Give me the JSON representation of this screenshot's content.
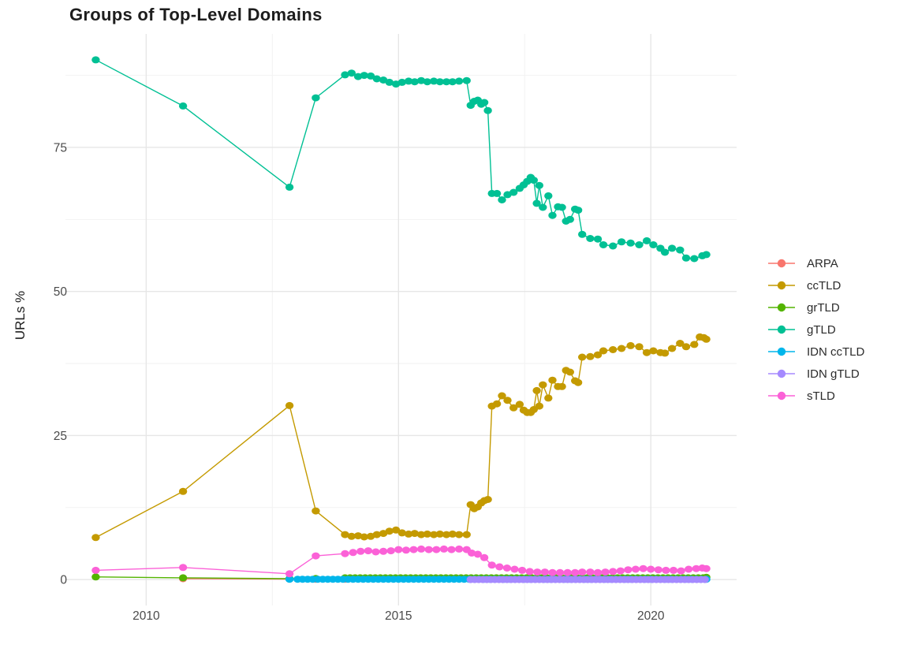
{
  "chart_data": {
    "type": "line",
    "title": "Groups of Top-Level Domains",
    "xlabel": "",
    "ylabel": "URLs %",
    "legend_position": "right",
    "grid": {
      "major_color": "#e6e6e6",
      "minor_color": "#f2f2f2",
      "background": "#ffffff"
    },
    "text_color": "#4a4a4a",
    "title_color": "#1d1d1d",
    "x_range": [
      2008.4,
      2021.7
    ],
    "y_range": [
      -4.5,
      94.7
    ],
    "x_ticks": [
      {
        "label": "2010",
        "value": 2010
      },
      {
        "label": "2015",
        "value": 2015
      },
      {
        "label": "2020",
        "value": 2020
      }
    ],
    "y_ticks": [
      {
        "label": "0",
        "value": 0
      },
      {
        "label": "25",
        "value": 25
      },
      {
        "label": "50",
        "value": 50
      },
      {
        "label": "75",
        "value": 75
      }
    ],
    "x_minor_breaks": [
      2012.5,
      2017.5
    ],
    "y_minor_breaks": [
      12.5,
      37.5,
      62.5,
      87.5
    ],
    "series": [
      {
        "name": "ARPA",
        "color": "#F8766D",
        "points": [
          [
            2010.73,
            0.15
          ],
          [
            2012.84,
            0.08
          ],
          [
            2013.36,
            0.06
          ],
          [
            2013.94,
            0.05
          ]
        ]
      },
      {
        "name": "ccTLD",
        "color": "#C49A00",
        "points": [
          [
            2009.0,
            7.3
          ],
          [
            2010.73,
            15.3
          ],
          [
            2012.84,
            30.2
          ],
          [
            2013.36,
            11.9
          ],
          [
            2013.94,
            7.8
          ],
          [
            2014.07,
            7.5
          ],
          [
            2014.2,
            7.6
          ],
          [
            2014.32,
            7.4
          ],
          [
            2014.45,
            7.5
          ],
          [
            2014.57,
            7.8
          ],
          [
            2014.7,
            8.0
          ],
          [
            2014.82,
            8.4
          ],
          [
            2014.95,
            8.6
          ],
          [
            2015.07,
            8.1
          ],
          [
            2015.2,
            7.9
          ],
          [
            2015.32,
            8.0
          ],
          [
            2015.45,
            7.8
          ],
          [
            2015.57,
            7.9
          ],
          [
            2015.7,
            7.8
          ],
          [
            2015.82,
            7.9
          ],
          [
            2015.95,
            7.8
          ],
          [
            2016.07,
            7.9
          ],
          [
            2016.2,
            7.8
          ],
          [
            2016.35,
            7.8
          ],
          [
            2016.43,
            13.0
          ],
          [
            2016.5,
            12.3
          ],
          [
            2016.57,
            12.6
          ],
          [
            2016.64,
            13.3
          ],
          [
            2016.7,
            13.7
          ],
          [
            2016.77,
            13.9
          ],
          [
            2016.85,
            30.1
          ],
          [
            2016.95,
            30.5
          ],
          [
            2017.05,
            31.9
          ],
          [
            2017.16,
            31.1
          ],
          [
            2017.28,
            29.8
          ],
          [
            2017.4,
            30.4
          ],
          [
            2017.48,
            29.4
          ],
          [
            2017.55,
            29.0
          ],
          [
            2017.62,
            29.0
          ],
          [
            2017.68,
            29.5
          ],
          [
            2017.74,
            32.8
          ],
          [
            2017.79,
            30.1
          ],
          [
            2017.86,
            33.8
          ],
          [
            2017.97,
            31.5
          ],
          [
            2018.05,
            34.6
          ],
          [
            2018.16,
            33.5
          ],
          [
            2018.24,
            33.5
          ],
          [
            2018.32,
            36.3
          ],
          [
            2018.4,
            36.0
          ],
          [
            2018.5,
            34.5
          ],
          [
            2018.56,
            34.2
          ],
          [
            2018.64,
            38.6
          ],
          [
            2018.8,
            38.7
          ],
          [
            2018.95,
            39.0
          ],
          [
            2019.06,
            39.7
          ],
          [
            2019.25,
            39.9
          ],
          [
            2019.42,
            40.1
          ],
          [
            2019.6,
            40.6
          ],
          [
            2019.77,
            40.4
          ],
          [
            2019.92,
            39.4
          ],
          [
            2020.05,
            39.7
          ],
          [
            2020.19,
            39.4
          ],
          [
            2020.28,
            39.3
          ],
          [
            2020.42,
            40.1
          ],
          [
            2020.58,
            41.0
          ],
          [
            2020.7,
            40.4
          ],
          [
            2020.86,
            40.8
          ],
          [
            2020.97,
            42.1
          ],
          [
            2021.05,
            42.0
          ],
          [
            2021.1,
            41.7
          ]
        ]
      },
      {
        "name": "grTLD",
        "color": "#53B400",
        "points": [
          [
            2009.0,
            0.45
          ],
          [
            2010.73,
            0.3
          ],
          [
            2012.84,
            0.15
          ],
          [
            2013.36,
            0.2
          ],
          [
            2021.1,
            0.4
          ]
        ],
        "flat": {
          "from": 2013.94,
          "to": 2021.05,
          "step": 0.1,
          "value": 0.3
        }
      },
      {
        "name": "gTLD",
        "color": "#00C094",
        "points": [
          [
            2009.0,
            90.2
          ],
          [
            2010.73,
            82.2
          ],
          [
            2012.84,
            68.1
          ],
          [
            2013.36,
            83.6
          ],
          [
            2013.94,
            87.6
          ],
          [
            2014.07,
            87.9
          ],
          [
            2014.2,
            87.3
          ],
          [
            2014.32,
            87.5
          ],
          [
            2014.45,
            87.4
          ],
          [
            2014.57,
            86.9
          ],
          [
            2014.7,
            86.7
          ],
          [
            2014.82,
            86.3
          ],
          [
            2014.95,
            86.0
          ],
          [
            2015.07,
            86.3
          ],
          [
            2015.2,
            86.5
          ],
          [
            2015.32,
            86.4
          ],
          [
            2015.45,
            86.6
          ],
          [
            2015.57,
            86.4
          ],
          [
            2015.7,
            86.5
          ],
          [
            2015.82,
            86.4
          ],
          [
            2015.95,
            86.4
          ],
          [
            2016.07,
            86.4
          ],
          [
            2016.2,
            86.5
          ],
          [
            2016.35,
            86.6
          ],
          [
            2016.43,
            82.3
          ],
          [
            2016.5,
            83.0
          ],
          [
            2016.57,
            83.2
          ],
          [
            2016.64,
            82.5
          ],
          [
            2016.7,
            82.8
          ],
          [
            2016.77,
            81.4
          ],
          [
            2016.85,
            67.0
          ],
          [
            2016.95,
            67.0
          ],
          [
            2017.05,
            65.9
          ],
          [
            2017.16,
            66.8
          ],
          [
            2017.28,
            67.2
          ],
          [
            2017.4,
            67.9
          ],
          [
            2017.48,
            68.5
          ],
          [
            2017.55,
            69.1
          ],
          [
            2017.62,
            69.8
          ],
          [
            2017.68,
            69.3
          ],
          [
            2017.74,
            65.3
          ],
          [
            2017.79,
            68.4
          ],
          [
            2017.86,
            64.6
          ],
          [
            2017.97,
            66.6
          ],
          [
            2018.05,
            63.2
          ],
          [
            2018.16,
            64.7
          ],
          [
            2018.24,
            64.6
          ],
          [
            2018.32,
            62.2
          ],
          [
            2018.4,
            62.5
          ],
          [
            2018.5,
            64.3
          ],
          [
            2018.56,
            64.1
          ],
          [
            2018.64,
            59.9
          ],
          [
            2018.8,
            59.2
          ],
          [
            2018.95,
            59.1
          ],
          [
            2019.06,
            58.1
          ],
          [
            2019.25,
            57.9
          ],
          [
            2019.42,
            58.6
          ],
          [
            2019.6,
            58.4
          ],
          [
            2019.77,
            58.1
          ],
          [
            2019.92,
            58.8
          ],
          [
            2020.05,
            58.1
          ],
          [
            2020.19,
            57.5
          ],
          [
            2020.28,
            56.8
          ],
          [
            2020.42,
            57.5
          ],
          [
            2020.58,
            57.2
          ],
          [
            2020.7,
            55.8
          ],
          [
            2020.86,
            55.7
          ],
          [
            2021.02,
            56.2
          ],
          [
            2021.1,
            56.4
          ]
        ]
      },
      {
        "name": "IDN ccTLD",
        "color": "#00B6EB",
        "points": [
          [
            2012.84,
            0.05
          ]
        ],
        "flat": {
          "from": 2013.0,
          "to": 2021.1,
          "step": 0.1,
          "value": 0.05
        }
      },
      {
        "name": "IDN gTLD",
        "color": "#A58AFF",
        "points": [],
        "flat": {
          "from": 2016.43,
          "to": 2021.1,
          "step": 0.08,
          "value": 0.0
        }
      },
      {
        "name": "sTLD",
        "color": "#FB61D7",
        "points": [
          [
            2009.0,
            1.6
          ],
          [
            2010.73,
            2.1
          ],
          [
            2012.84,
            1.0
          ],
          [
            2013.36,
            4.1
          ],
          [
            2013.94,
            4.5
          ],
          [
            2014.1,
            4.7
          ],
          [
            2014.25,
            4.9
          ],
          [
            2014.4,
            5.0
          ],
          [
            2014.55,
            4.8
          ],
          [
            2014.7,
            4.9
          ],
          [
            2014.85,
            5.0
          ],
          [
            2015.0,
            5.2
          ],
          [
            2015.15,
            5.1
          ],
          [
            2015.3,
            5.2
          ],
          [
            2015.45,
            5.3
          ],
          [
            2015.6,
            5.2
          ],
          [
            2015.75,
            5.2
          ],
          [
            2015.9,
            5.3
          ],
          [
            2016.05,
            5.2
          ],
          [
            2016.2,
            5.3
          ],
          [
            2016.35,
            5.2
          ],
          [
            2016.45,
            4.6
          ],
          [
            2016.57,
            4.4
          ],
          [
            2016.7,
            3.8
          ],
          [
            2016.85,
            2.5
          ],
          [
            2017.0,
            2.2
          ],
          [
            2017.15,
            2.0
          ],
          [
            2017.3,
            1.8
          ],
          [
            2017.45,
            1.6
          ],
          [
            2017.6,
            1.4
          ],
          [
            2017.75,
            1.3
          ],
          [
            2017.9,
            1.3
          ],
          [
            2018.05,
            1.2
          ],
          [
            2018.2,
            1.2
          ],
          [
            2018.35,
            1.2
          ],
          [
            2018.5,
            1.2
          ],
          [
            2018.64,
            1.3
          ],
          [
            2018.8,
            1.3
          ],
          [
            2018.95,
            1.2
          ],
          [
            2019.1,
            1.3
          ],
          [
            2019.25,
            1.4
          ],
          [
            2019.4,
            1.5
          ],
          [
            2019.55,
            1.7
          ],
          [
            2019.7,
            1.8
          ],
          [
            2019.85,
            1.9
          ],
          [
            2020.0,
            1.8
          ],
          [
            2020.15,
            1.7
          ],
          [
            2020.3,
            1.6
          ],
          [
            2020.45,
            1.6
          ],
          [
            2020.6,
            1.5
          ],
          [
            2020.75,
            1.8
          ],
          [
            2020.9,
            1.9
          ],
          [
            2021.02,
            2.0
          ],
          [
            2021.1,
            1.9
          ]
        ]
      }
    ]
  }
}
